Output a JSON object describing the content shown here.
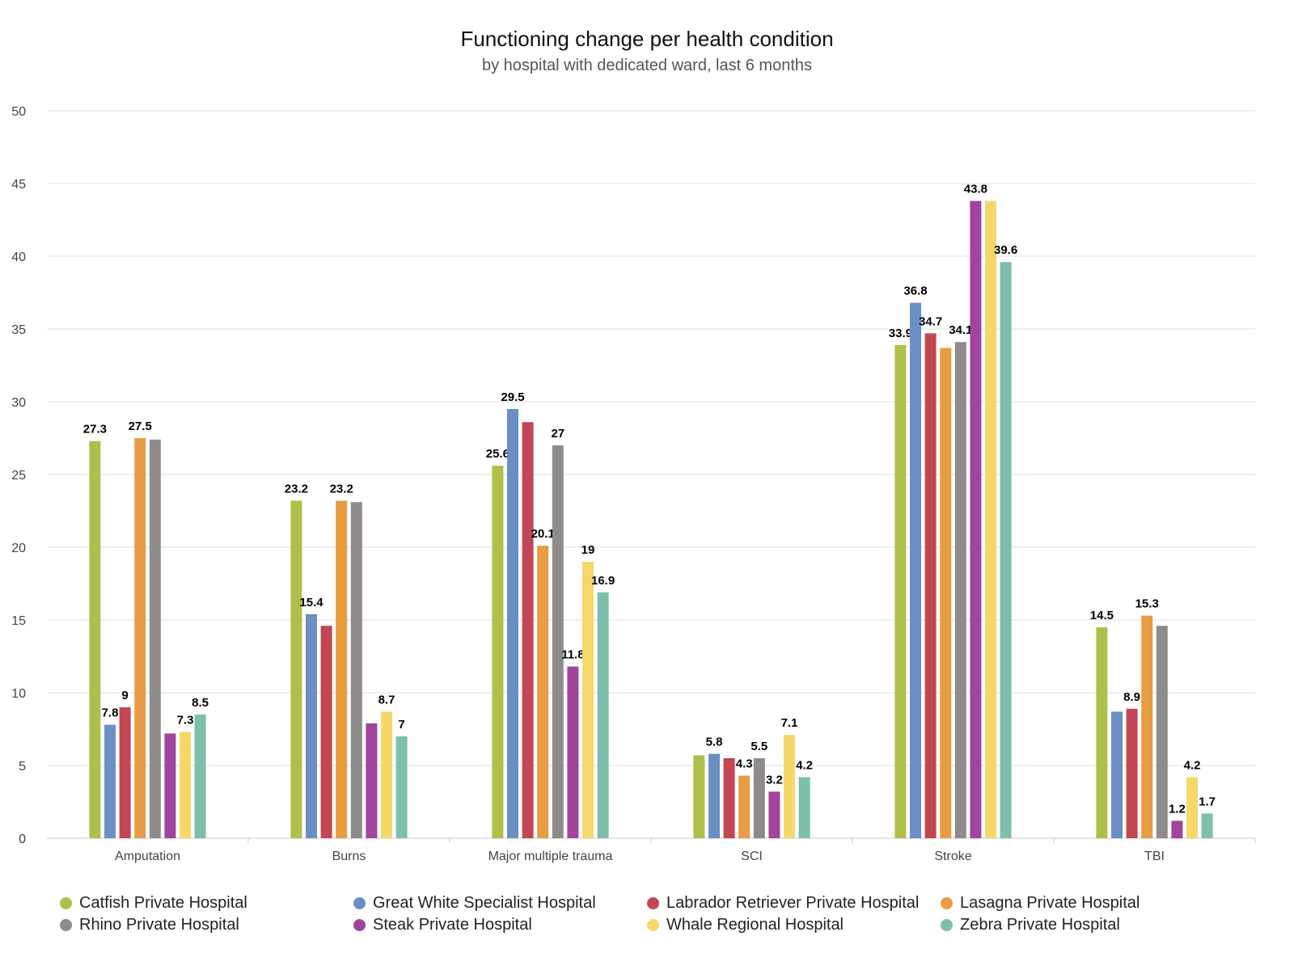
{
  "chart_data": {
    "type": "bar",
    "title": "Functioning change per health condition",
    "subtitle": "by hospital with dedicated ward, last 6 months",
    "xlabel": "",
    "ylabel": "",
    "ylim": [
      0,
      50
    ],
    "yticks": [
      "0",
      "5",
      "10",
      "15",
      "20",
      "25",
      "30",
      "35",
      "40",
      "45",
      "50"
    ],
    "grid": true,
    "legend_position": "bottom",
    "categories": [
      "Amputation",
      "Burns",
      "Major multiple trauma",
      "SCI",
      "Stroke",
      "TBI"
    ],
    "series": [
      {
        "name": "Catfish Private Hospital",
        "color": "#b0bf4a",
        "values": [
          27.3,
          23.2,
          25.6,
          5.7,
          33.9,
          14.5
        ],
        "labels": [
          "27.3",
          "23.2",
          "25.6",
          "",
          "33.9",
          "14.5"
        ]
      },
      {
        "name": "Great White Specialist Hospital",
        "color": "#6b8fc4",
        "values": [
          7.8,
          15.4,
          29.5,
          5.8,
          36.8,
          8.7
        ],
        "labels": [
          "7.8",
          "15.4",
          "29.5",
          "5.8",
          "36.8",
          ""
        ]
      },
      {
        "name": "Labrador Retriever Private Hospital",
        "color": "#c24653",
        "values": [
          9,
          14.6,
          28.6,
          5.5,
          34.7,
          8.9
        ],
        "labels": [
          "9",
          "",
          "",
          "",
          "34.7",
          "8.9"
        ]
      },
      {
        "name": "Lasagna Private Hospital",
        "color": "#e89c44",
        "values": [
          27.5,
          23.2,
          20.1,
          4.3,
          33.7,
          15.3
        ],
        "labels": [
          "27.5",
          "23.2",
          "20.1",
          "4.3",
          "",
          "15.3"
        ]
      },
      {
        "name": "Rhino Private Hospital",
        "color": "#8f8b8b",
        "values": [
          27.4,
          23.1,
          27,
          5.5,
          34.1,
          14.6
        ],
        "labels": [
          "",
          "",
          "27",
          "5.5",
          "34.1",
          ""
        ]
      },
      {
        "name": "Steak Private Hospital",
        "color": "#a0449c",
        "values": [
          7.2,
          7.9,
          11.8,
          3.2,
          43.8,
          1.2
        ],
        "labels": [
          "",
          "",
          "11.8",
          "3.2",
          "43.8",
          "1.2"
        ]
      },
      {
        "name": "Whale Regional Hospital",
        "color": "#f6d86a",
        "values": [
          7.3,
          8.7,
          19,
          7.1,
          43.8,
          4.2
        ],
        "labels": [
          "7.3",
          "8.7",
          "19",
          "7.1",
          "",
          "4.2"
        ]
      },
      {
        "name": "Zebra Private Hospital",
        "color": "#7ebfac",
        "values": [
          8.5,
          7,
          16.9,
          4.2,
          39.6,
          1.7
        ],
        "labels": [
          "8.5",
          "7",
          "16.9",
          "4.2",
          "39.6",
          "1.7"
        ]
      }
    ]
  }
}
